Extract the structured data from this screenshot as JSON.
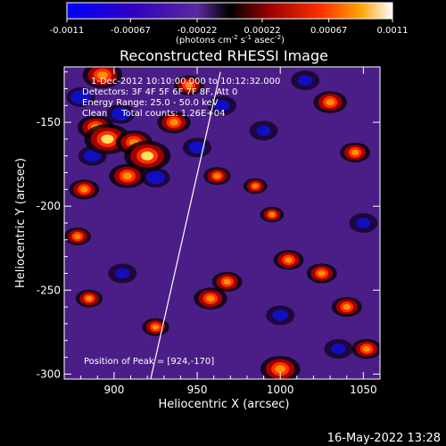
{
  "chart_data": {
    "type": "heatmap",
    "title": "Reconstructed RHESSI Image",
    "xlabel": "Heliocentric X (arcsec)",
    "ylabel": "Heliocentric Y (arcsec)",
    "xlim": [
      870,
      1060
    ],
    "ylim": [
      -303,
      -117
    ],
    "x_ticks": [
      900,
      950,
      1000,
      1050
    ],
    "y_ticks": [
      -300,
      -250,
      -200,
      -150
    ],
    "colorbar": {
      "min": -0.0011,
      "max": 0.0011,
      "ticks": [
        "-0.0011",
        "-0.00067",
        "-0.00022",
        "0.00022",
        "0.00067",
        "0.0011"
      ],
      "tick_values": [
        -0.0011,
        -0.00067,
        -0.00022,
        0.00022,
        0.00067,
        0.0011
      ],
      "label_prefix": "(photons cm",
      "label_sup1": "-2",
      "label_mid1": " s",
      "label_sup2": "-1",
      "label_mid2": " asec",
      "label_sup3": "-2",
      "label_suffix": ")"
    },
    "annotations": [
      "1-Dec-2012 10:10:00.000 to 10:12:32.000",
      "Detectors: 3F 4F 5F 6F 7F 8F, Att 0",
      "Energy Range: 25.0 - 50.0 keV",
      "Clean     Total counts: 1.26E+04"
    ],
    "peak_label": "Position of Peak = [924,-170]",
    "peak_position": [
      924,
      -170
    ],
    "limb_line": [
      [
        922,
        -303
      ],
      [
        964,
        -120
      ]
    ],
    "bright_sources": [
      {
        "x": 893,
        "y": -122,
        "v": 0.0009
      },
      {
        "x": 889,
        "y": -153,
        "v": 0.0008
      },
      {
        "x": 896,
        "y": -160,
        "v": 0.0011
      },
      {
        "x": 912,
        "y": -162,
        "v": 0.0008
      },
      {
        "x": 920,
        "y": -170,
        "v": 0.0011
      },
      {
        "x": 908,
        "y": -182,
        "v": 0.0008
      },
      {
        "x": 936,
        "y": -150,
        "v": 0.0007
      },
      {
        "x": 945,
        "y": -128,
        "v": 0.0006
      },
      {
        "x": 882,
        "y": -190,
        "v": 0.0006
      },
      {
        "x": 878,
        "y": -218,
        "v": 0.0005
      },
      {
        "x": 962,
        "y": -182,
        "v": 0.0005
      },
      {
        "x": 1030,
        "y": -138,
        "v": 0.0007
      },
      {
        "x": 1045,
        "y": -168,
        "v": 0.0006
      },
      {
        "x": 1005,
        "y": -232,
        "v": 0.0006
      },
      {
        "x": 1025,
        "y": -240,
        "v": 0.0006
      },
      {
        "x": 968,
        "y": -245,
        "v": 0.0006
      },
      {
        "x": 958,
        "y": -255,
        "v": 0.0007
      },
      {
        "x": 1040,
        "y": -260,
        "v": 0.0006
      },
      {
        "x": 1052,
        "y": -285,
        "v": 0.0006
      },
      {
        "x": 1000,
        "y": -297,
        "v": 0.0009
      },
      {
        "x": 925,
        "y": -272,
        "v": 0.0005
      },
      {
        "x": 885,
        "y": -255,
        "v": 0.0005
      },
      {
        "x": 985,
        "y": -188,
        "v": 0.0004
      },
      {
        "x": 995,
        "y": -205,
        "v": 0.0004
      }
    ],
    "dark_sources": [
      {
        "x": 880,
        "y": -135,
        "v": -0.0009
      },
      {
        "x": 904,
        "y": -145,
        "v": -0.0008
      },
      {
        "x": 887,
        "y": -170,
        "v": -0.0007
      },
      {
        "x": 925,
        "y": -183,
        "v": -0.0008
      },
      {
        "x": 950,
        "y": -165,
        "v": -0.0007
      },
      {
        "x": 965,
        "y": -140,
        "v": -0.0006
      },
      {
        "x": 990,
        "y": -155,
        "v": -0.0005
      },
      {
        "x": 1015,
        "y": -125,
        "v": -0.0005
      },
      {
        "x": 1050,
        "y": -210,
        "v": -0.0005
      },
      {
        "x": 1000,
        "y": -265,
        "v": -0.0006
      },
      {
        "x": 905,
        "y": -240,
        "v": -0.0005
      },
      {
        "x": 1035,
        "y": -285,
        "v": -0.0005
      }
    ],
    "grid": false
  },
  "footer": {
    "timestamp": "16-May-2022 13:28"
  }
}
